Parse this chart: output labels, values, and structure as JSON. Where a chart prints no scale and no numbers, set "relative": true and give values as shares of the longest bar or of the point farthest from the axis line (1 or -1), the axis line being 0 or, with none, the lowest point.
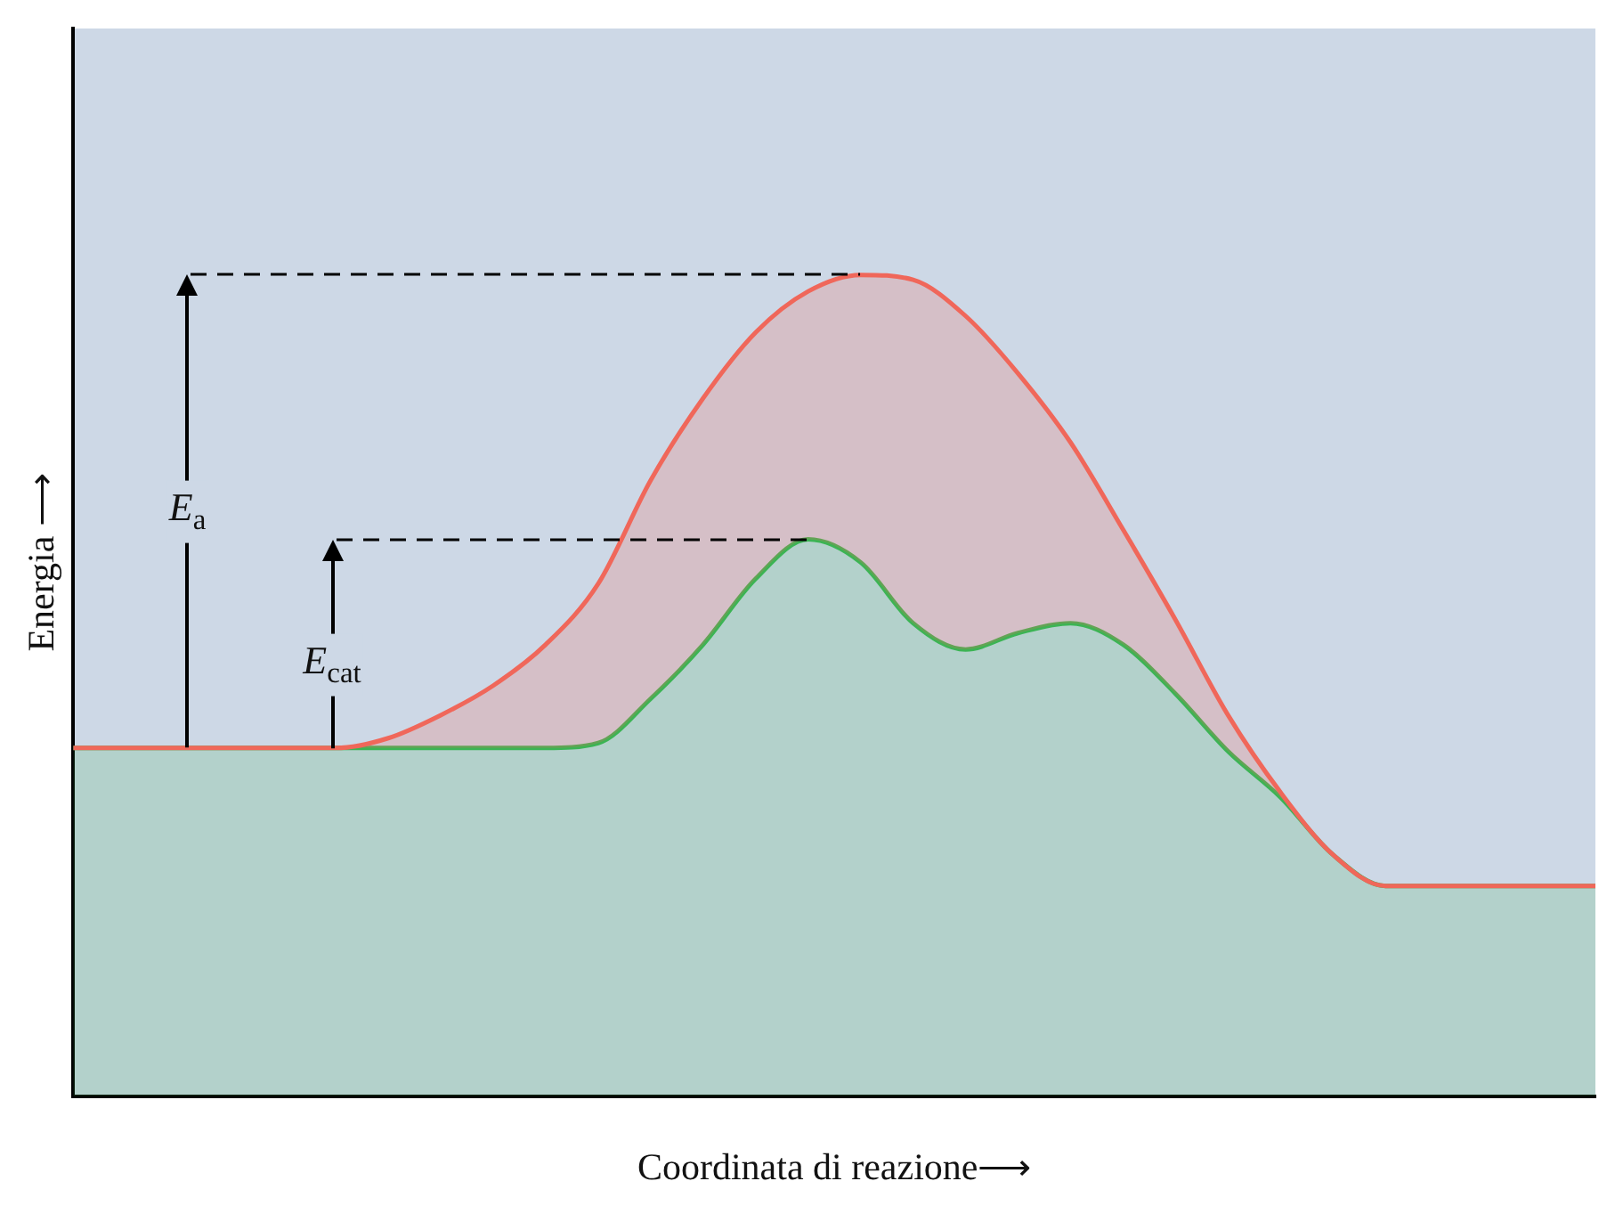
{
  "chart_data": {
    "type": "area",
    "relative": true,
    "xlabel": "Coordinata di reazione⟶",
    "ylabel": "Energia ⟶",
    "legend": false,
    "grid": false,
    "categories": [
      null,
      null,
      null,
      null,
      null,
      null,
      null,
      null,
      null,
      null,
      null,
      null,
      null,
      null,
      null,
      null,
      null,
      null,
      null,
      null,
      null,
      null,
      null,
      null,
      null,
      null,
      null,
      null,
      null,
      null
    ],
    "series": [
      {
        "color": "#f0675a",
        "values": [
          0.424,
          0.424,
          0.424,
          0.424,
          0.424,
          0.424,
          0.436,
          0.464,
          0.5,
          0.55,
          0.624,
          0.75,
          0.85,
          0.93,
          0.98,
          1.0,
          0.994,
          0.95,
          0.88,
          0.796,
          0.69,
          0.58,
          0.464,
          0.37,
          0.294,
          0.256,
          0.256,
          0.256,
          0.256,
          0.256
        ]
      },
      {
        "color": "#3cb454",
        "values": [
          0.424,
          0.424,
          0.424,
          0.424,
          0.424,
          0.424,
          0.424,
          0.424,
          0.424,
          0.424,
          0.43,
          0.484,
          0.55,
          0.63,
          0.678,
          0.65,
          0.576,
          0.544,
          0.564,
          0.576,
          0.55,
          0.49,
          0.42,
          0.364,
          0.294,
          0.256,
          0.256,
          0.256,
          0.256,
          0.256
        ]
      }
    ],
    "annotations": [
      "E$_{a}$",
      "E$_{cat}$"
    ]
  }
}
